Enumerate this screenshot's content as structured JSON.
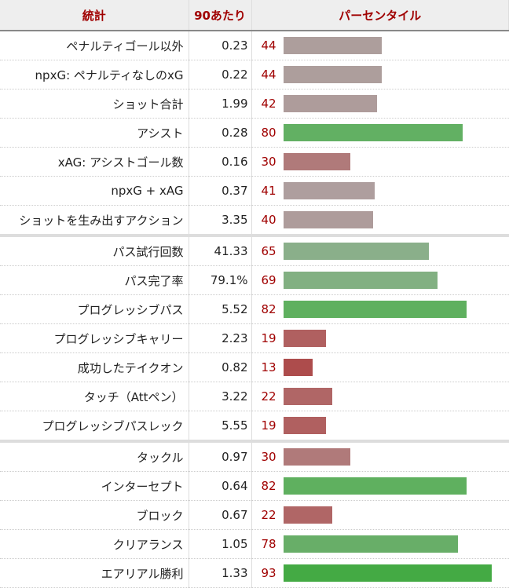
{
  "header": {
    "stat": "統計",
    "per90": "90あたり",
    "percentile": "パーセンタイル"
  },
  "groups": [
    [
      {
        "stat": "ペナルティゴール以外",
        "per90": "0.23",
        "percentile": 44,
        "color": "#ad9e9c"
      },
      {
        "stat": "npxG: ペナルティなしのxG",
        "per90": "0.22",
        "percentile": 44,
        "color": "#ad9e9c"
      },
      {
        "stat": "ショット合計",
        "per90": "1.99",
        "percentile": 42,
        "color": "#ae9c9b"
      },
      {
        "stat": "アシスト",
        "per90": "0.28",
        "percentile": 80,
        "color": "#62b063"
      },
      {
        "stat": "xAG: アシストゴール数",
        "per90": "0.16",
        "percentile": 30,
        "color": "#b07a7a"
      },
      {
        "stat": "npxG + xAG",
        "per90": "0.37",
        "percentile": 41,
        "color": "#ae9e9e"
      },
      {
        "stat": "ショットを生み出すアクション",
        "per90": "3.35",
        "percentile": 40,
        "color": "#ae9c9b"
      }
    ],
    [
      {
        "stat": "パス試行回数",
        "per90": "41.33",
        "percentile": 65,
        "color": "#8aaf8a"
      },
      {
        "stat": "パス完了率",
        "per90": "79.1%",
        "percentile": 69,
        "color": "#82b082"
      },
      {
        "stat": "プログレッシブパス",
        "per90": "5.52",
        "percentile": 82,
        "color": "#5fb05f"
      },
      {
        "stat": "プログレッシブキャリー",
        "per90": "2.23",
        "percentile": 19,
        "color": "#b06060"
      },
      {
        "stat": "成功したテイクオン",
        "per90": "0.82",
        "percentile": 13,
        "color": "#ad4c4c"
      },
      {
        "stat": "タッチ（Attペン）",
        "per90": "3.22",
        "percentile": 22,
        "color": "#b06666"
      },
      {
        "stat": "プログレッシブパスレック",
        "per90": "5.55",
        "percentile": 19,
        "color": "#b06060"
      }
    ],
    [
      {
        "stat": "タックル",
        "per90": "0.97",
        "percentile": 30,
        "color": "#b07a7a"
      },
      {
        "stat": "インターセプト",
        "per90": "0.64",
        "percentile": 82,
        "color": "#5fb05f"
      },
      {
        "stat": "ブロック",
        "per90": "0.67",
        "percentile": 22,
        "color": "#b06666"
      },
      {
        "stat": "クリアランス",
        "per90": "1.05",
        "percentile": 78,
        "color": "#68ae68"
      },
      {
        "stat": "エアリアル勝利",
        "per90": "1.33",
        "percentile": 93,
        "color": "#44aa44"
      }
    ]
  ]
}
